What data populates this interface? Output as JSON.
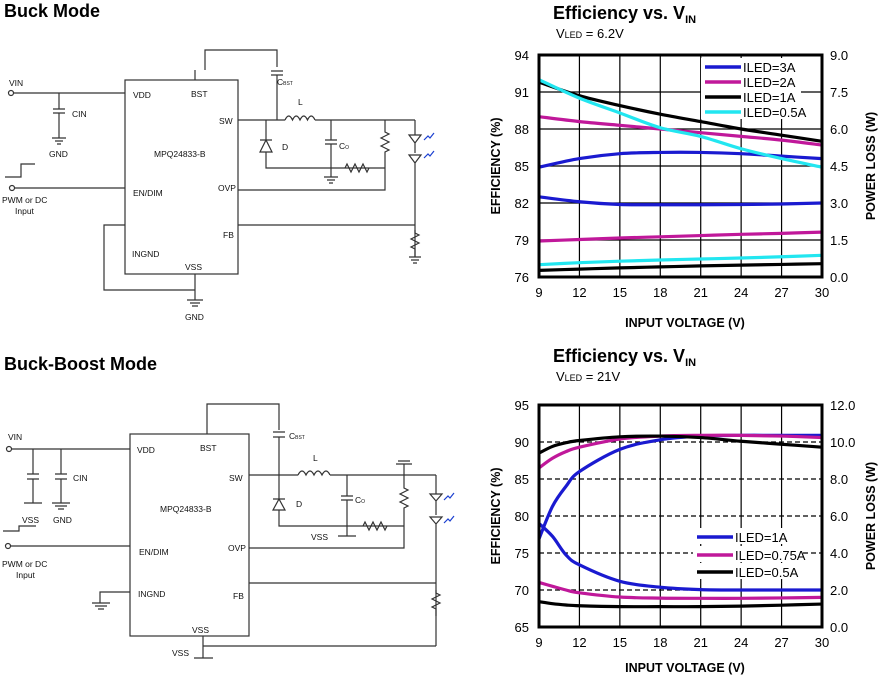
{
  "sections": [
    {
      "heading": "Buck Mode"
    },
    {
      "heading": "Buck-Boost Mode"
    }
  ],
  "buck_circuit": {
    "ic": "MPQ24833-B",
    "pins": {
      "vdd": "VDD",
      "bst": "BST",
      "sw": "SW",
      "en": "EN/DIM",
      "ovp": "OVP",
      "fb": "FB",
      "ingnd": "INGND",
      "vss": "VSS"
    },
    "vin": "VIN",
    "cin": "CIN",
    "gnd_in": "GND",
    "gnd_out": "GND",
    "pwm_line1": "PWM or DC",
    "pwm_line2": "Input",
    "cbst": "C",
    "cbst_sub": "BST",
    "l": "L",
    "d": "D",
    "co": "C",
    "co_sub": "O"
  },
  "buckboost_circuit": {
    "ic": "MPQ24833-B",
    "pins": {
      "vdd": "VDD",
      "bst": "BST",
      "sw": "SW",
      "en": "EN/DIM",
      "ovp": "OVP",
      "fb": "FB",
      "ingnd": "INGND",
      "vss": "VSS"
    },
    "vin": "VIN",
    "cin": "CIN",
    "vss_in": "VSS",
    "gnd_in": "GND",
    "vss_out": "VSS",
    "vss_bottom": "VSS",
    "pwm_line1": "PWM or DC",
    "pwm_line2": "Input",
    "cbst": "C",
    "cbst_sub": "BST",
    "l": "L",
    "d": "D",
    "co": "C",
    "co_sub": "O"
  },
  "chart_data": [
    {
      "type": "line",
      "title": "Efficiency vs. V",
      "title_sub": "IN",
      "subtitle": "V",
      "subtitle_sub": "LED",
      "subtitle_rest": " = 6.2V",
      "xlabel": "INPUT VOLTAGE  (V)",
      "ylabel": "EFFICIENCY  (%)",
      "y2label": "POWER LOSS (W)",
      "xlim": [
        9,
        30
      ],
      "ylim": [
        76,
        94
      ],
      "y2lim": [
        0,
        9
      ],
      "xticks": [
        "9",
        "12",
        "15",
        "18",
        "21",
        "24",
        "27",
        "30"
      ],
      "yticks": [
        "76",
        "79",
        "82",
        "85",
        "88",
        "91",
        "94"
      ],
      "y2ticks": [
        "0.0",
        "1.5",
        "3.0",
        "4.5",
        "6.0",
        "7.5",
        "9.0"
      ],
      "grid": true,
      "grid_style": "solid",
      "legend": "top-right",
      "x": [
        9,
        12,
        15,
        18,
        21,
        24,
        27,
        30
      ],
      "series": [
        {
          "name": "ILED=3A",
          "color": "#1a1ad0",
          "efficiency": [
            84.9,
            85.6,
            86.0,
            86.1,
            86.1,
            86.0,
            85.8,
            85.6
          ],
          "power_loss": [
            3.25,
            3.05,
            2.94,
            2.93,
            2.93,
            2.94,
            2.96,
            3.0
          ]
        },
        {
          "name": "ILED=2A",
          "color": "#c0189a",
          "efficiency": [
            89.0,
            88.6,
            88.3,
            88.0,
            87.7,
            87.4,
            87.1,
            86.7
          ],
          "power_loss": [
            1.46,
            1.52,
            1.58,
            1.63,
            1.68,
            1.73,
            1.77,
            1.82
          ]
        },
        {
          "name": "ILED=1A",
          "color": "#000000",
          "efficiency": [
            91.8,
            90.7,
            89.9,
            89.2,
            88.6,
            88.0,
            87.5,
            87.0
          ],
          "power_loss": [
            0.27,
            0.32,
            0.37,
            0.41,
            0.45,
            0.48,
            0.51,
            0.54
          ]
        },
        {
          "name": "ILED=0.5A",
          "color": "#22e6f0",
          "efficiency": [
            92.0,
            90.5,
            89.3,
            88.1,
            87.4,
            86.4,
            85.6,
            84.9
          ],
          "power_loss": [
            0.5,
            0.58,
            0.64,
            0.69,
            0.73,
            0.77,
            0.82,
            0.88
          ]
        }
      ]
    },
    {
      "type": "line",
      "title": "Efficiency vs. V",
      "title_sub": "IN",
      "subtitle": "V",
      "subtitle_sub": "LED",
      "subtitle_rest": " = 21V",
      "xlabel": "INPUT VOLTAGE  (V)",
      "ylabel": "EFFICIENCY  (%)",
      "y2label": "POWER LOSS (W)",
      "xlim": [
        9,
        30
      ],
      "ylim": [
        65,
        95
      ],
      "y2lim": [
        0,
        12
      ],
      "xticks": [
        "9",
        "12",
        "15",
        "18",
        "21",
        "24",
        "27",
        "30"
      ],
      "yticks": [
        "65",
        "70",
        "75",
        "80",
        "85",
        "90",
        "95"
      ],
      "y2ticks": [
        "0.0",
        "2.0",
        "4.0",
        "6.0",
        "8.0",
        "10.0",
        "12.0"
      ],
      "grid": true,
      "grid_style": "dashed-horizontal",
      "legend": "center-right",
      "x": [
        9,
        10,
        11,
        12,
        15,
        18,
        21,
        24,
        27,
        30
      ],
      "series": [
        {
          "name": "ILED=1A",
          "color": "#1a1ad0",
          "efficiency": [
            76.9,
            81.3,
            84.0,
            86.0,
            89.0,
            90.3,
            90.8,
            90.9,
            90.9,
            90.9
          ],
          "power_loss": [
            5.6,
            4.9,
            3.9,
            3.36,
            2.47,
            2.15,
            2.02,
            2.0,
            2.0,
            2.0
          ]
        },
        {
          "name": "ILED=0.75A",
          "color": "#c0189a",
          "efficiency": [
            86.5,
            87.8,
            88.7,
            89.3,
            90.4,
            90.8,
            90.9,
            90.9,
            90.8,
            90.6
          ],
          "power_loss": [
            2.41,
            2.2,
            2.0,
            1.85,
            1.62,
            1.56,
            1.55,
            1.55,
            1.57,
            1.6
          ]
        },
        {
          "name": "ILED=0.5A",
          "color": "#000000",
          "efficiency": [
            88.5,
            89.4,
            89.9,
            90.2,
            90.7,
            90.8,
            90.6,
            90.1,
            89.7,
            89.3
          ],
          "power_loss": [
            1.37,
            1.26,
            1.19,
            1.15,
            1.1,
            1.1,
            1.1,
            1.13,
            1.18,
            1.24
          ]
        }
      ]
    }
  ]
}
